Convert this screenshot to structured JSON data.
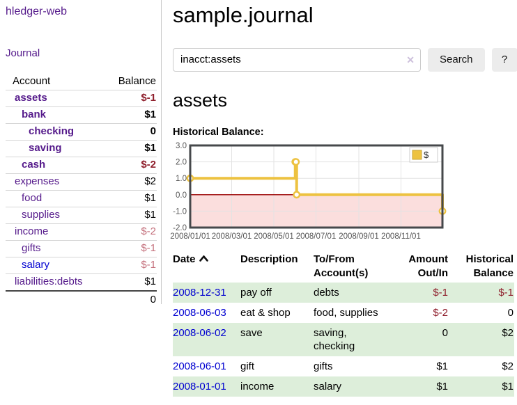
{
  "app": {
    "brand": "hledger-web"
  },
  "sidebar": {
    "nav_journal": "Journal",
    "headers": {
      "account": "Account",
      "balance": "Balance"
    },
    "accounts": [
      {
        "name": "assets",
        "indent": 1,
        "bold": true,
        "link": "purple",
        "balance": "$-1",
        "neg": "dark"
      },
      {
        "name": "bank",
        "indent": 2,
        "bold": true,
        "link": "purple",
        "balance": "$1",
        "neg": null
      },
      {
        "name": "checking",
        "indent": 3,
        "bold": true,
        "link": "purple",
        "balance": "0",
        "neg": null
      },
      {
        "name": "saving",
        "indent": 3,
        "bold": true,
        "link": "purple",
        "balance": "$1",
        "neg": null
      },
      {
        "name": "cash",
        "indent": 2,
        "bold": true,
        "link": "purple",
        "balance": "$-2",
        "neg": "dark"
      },
      {
        "name": "expenses",
        "indent": 1,
        "bold": false,
        "link": "purple",
        "balance": "$2",
        "neg": null
      },
      {
        "name": "food",
        "indent": 2,
        "bold": false,
        "link": "purple",
        "balance": "$1",
        "neg": null
      },
      {
        "name": "supplies",
        "indent": 2,
        "bold": false,
        "link": "purple",
        "balance": "$1",
        "neg": null
      },
      {
        "name": "income",
        "indent": 1,
        "bold": false,
        "link": "purple",
        "balance": "$-2",
        "neg": "light"
      },
      {
        "name": "gifts",
        "indent": 2,
        "bold": false,
        "link": "purple",
        "balance": "$-1",
        "neg": "light"
      },
      {
        "name": "salary",
        "indent": 2,
        "bold": false,
        "link": "blue",
        "balance": "$-1",
        "neg": "light"
      },
      {
        "name": "liabilities:debts",
        "indent": 1,
        "bold": false,
        "link": "purple",
        "balance": "$1",
        "neg": null
      }
    ],
    "total": "0"
  },
  "main": {
    "title": "sample.journal",
    "search": {
      "value": "inacct:assets",
      "clear_icon": "✕",
      "button": "Search",
      "help": "?"
    },
    "account_heading": "assets",
    "chart_heading": "Historical Balance:"
  },
  "chart_data": {
    "type": "line",
    "step": true,
    "title": "Historical Balance:",
    "series": [
      {
        "name": "$",
        "color": "#edc240",
        "points": [
          [
            "2008-01-01",
            1
          ],
          [
            "2008-06-01",
            2
          ],
          [
            "2008-06-02",
            2
          ],
          [
            "2008-06-03",
            0
          ],
          [
            "2008-12-31",
            -1
          ]
        ]
      }
    ],
    "xrange": [
      "2008-01-01",
      "2008-12-31"
    ],
    "ylim": [
      -2,
      3
    ],
    "yticks": [
      3.0,
      2.0,
      1.0,
      0.0,
      -1.0,
      -2.0
    ],
    "ytick_labels": [
      "3.0",
      "2.0",
      "1.0",
      "0.0",
      "-1.0",
      "-2.0"
    ],
    "xticks": [
      "2008-01-01",
      "2008-03-01",
      "2008-05-01",
      "2008-07-01",
      "2008-09-01",
      "2008-11-01"
    ],
    "xtick_labels": [
      "2008/01/01",
      "2008/03/01",
      "2008/05/01",
      "2008/07/01",
      "2008/09/01",
      "2008/11/01"
    ],
    "legend": {
      "position": "top-right",
      "label": "$"
    },
    "grid": true,
    "negative_region_color": "#fbdedd",
    "zero_line_color": "#990000",
    "grid_color": "#e3e3e3"
  },
  "register": {
    "headers": {
      "date": "Date",
      "description": "Description",
      "accounts": "To/From Account(s)",
      "amount": "Amount Out/In",
      "balance": "Historical Balance"
    },
    "sort": {
      "column": "date",
      "direction": "asc"
    },
    "rows": [
      {
        "date": "2008-12-31",
        "description": "pay off",
        "accounts": "debts",
        "amount": "$-1",
        "amount_neg": true,
        "balance": "$-1",
        "balance_neg": true
      },
      {
        "date": "2008-06-03",
        "description": "eat & shop",
        "accounts": "food, supplies",
        "amount": "$-2",
        "amount_neg": true,
        "balance": "0",
        "balance_neg": false
      },
      {
        "date": "2008-06-02",
        "description": "save",
        "accounts": "saving, checking",
        "amount": "0",
        "amount_neg": false,
        "balance": "$2",
        "balance_neg": false
      },
      {
        "date": "2008-06-01",
        "description": "gift",
        "accounts": "gifts",
        "amount": "$1",
        "amount_neg": false,
        "balance": "$2",
        "balance_neg": false
      },
      {
        "date": "2008-01-01",
        "description": "income",
        "accounts": "salary",
        "amount": "$1",
        "amount_neg": false,
        "balance": "$1",
        "balance_neg": false
      }
    ]
  },
  "colors": {
    "link_purple": "#551a8b",
    "link_blue": "#0000d0",
    "negative_strong": "#8f1f2c",
    "negative_soft": "#c4707c",
    "row_stripe_green": "#ddeeda",
    "series_yellow": "#edc240"
  }
}
